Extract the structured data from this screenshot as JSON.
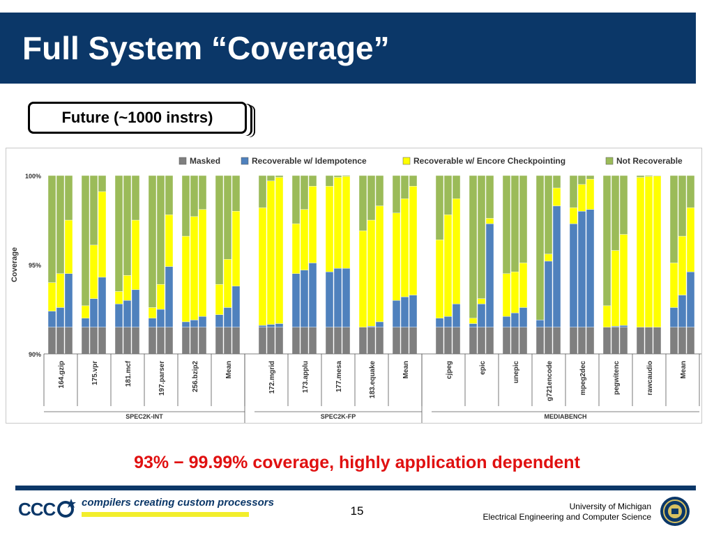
{
  "slide": {
    "title": "Full System “Coverage”",
    "subtitle": "Future (~1000 instrs)",
    "conclusion": "93% − 99.99% coverage, highly application dependent",
    "page_number": "15"
  },
  "footer": {
    "logo_text": "CCC",
    "tagline": "compilers creating custom processors",
    "university": "University of Michigan",
    "department": "Electrical Engineering and Computer Science",
    "seal_icon": "university-seal-icon",
    "logo_icon": "ccc-logo-icon"
  },
  "colors": {
    "title_bar": "#0b3768",
    "masked": "#7f7f7f",
    "idempotence": "#4f81bd",
    "checkpointing": "#ffff00",
    "not_recoverable": "#9bbb59",
    "conclusion": "#e01010"
  },
  "chart_data": {
    "type": "bar",
    "stacked": true,
    "title": "",
    "xlabel": "",
    "ylabel": "Coverage",
    "ylim": [
      90,
      100
    ],
    "yticks": [
      {
        "value": 90,
        "label": "90%"
      },
      {
        "value": 95,
        "label": "95%"
      },
      {
        "value": 100,
        "label": "100%"
      }
    ],
    "legend_position": "top",
    "series_names": [
      "Masked",
      "Recoverable w/ Idempotence",
      "Recoverable w/ Encore Checkpointing",
      "Not Recoverable"
    ],
    "bar_variants": [
      "bar 1",
      "bar 2",
      "bar 3"
    ],
    "groups": [
      {
        "label": "SPEC2K-INT",
        "benchmarks": [
          {
            "name": "164.gzip",
            "bars": [
              [
                91.5,
                92.4,
                94.0
              ],
              [
                91.5,
                92.6,
                94.5
              ],
              [
                91.5,
                94.5,
                97.5
              ]
            ]
          },
          {
            "name": "175.vpr",
            "bars": [
              [
                91.5,
                92.0,
                92.7
              ],
              [
                91.5,
                93.1,
                96.1
              ],
              [
                91.5,
                94.3,
                99.1
              ]
            ]
          },
          {
            "name": "181.mcf",
            "bars": [
              [
                91.5,
                92.8,
                93.5
              ],
              [
                91.5,
                93.0,
                94.4
              ],
              [
                91.5,
                93.6,
                97.5
              ]
            ]
          },
          {
            "name": "197.parser",
            "bars": [
              [
                91.5,
                92.0,
                92.6
              ],
              [
                91.5,
                92.5,
                93.9
              ],
              [
                91.5,
                94.9,
                97.8
              ]
            ]
          },
          {
            "name": "256.bzip2",
            "bars": [
              [
                91.5,
                91.8,
                96.6
              ],
              [
                91.5,
                91.9,
                97.7
              ],
              [
                91.5,
                92.1,
                98.1
              ]
            ]
          },
          {
            "name": "Mean",
            "bars": [
              [
                91.5,
                92.2,
                93.9
              ],
              [
                91.5,
                92.6,
                95.3
              ],
              [
                91.5,
                93.8,
                98.0
              ]
            ]
          }
        ]
      },
      {
        "label": "SPEC2K-FP",
        "benchmarks": [
          {
            "name": "172.mgrid",
            "bars": [
              [
                91.5,
                91.6,
                98.2
              ],
              [
                91.5,
                91.65,
                99.7
              ],
              [
                91.5,
                91.7,
                99.9
              ]
            ]
          },
          {
            "name": "173.applu",
            "bars": [
              [
                91.5,
                94.5,
                97.3
              ],
              [
                91.5,
                94.7,
                98.1
              ],
              [
                91.5,
                95.1,
                99.4
              ]
            ]
          },
          {
            "name": "177.mesa",
            "bars": [
              [
                91.5,
                94.6,
                99.4
              ],
              [
                91.5,
                94.8,
                99.9
              ],
              [
                91.5,
                94.8,
                99.95
              ]
            ]
          },
          {
            "name": "183.equake",
            "bars": [
              [
                91.5,
                91.5,
                96.9
              ],
              [
                91.5,
                91.55,
                97.5
              ],
              [
                91.5,
                91.8,
                98.3
              ]
            ]
          },
          {
            "name": "Mean",
            "bars": [
              [
                91.5,
                93.0,
                97.9
              ],
              [
                91.5,
                93.2,
                98.7
              ],
              [
                91.5,
                93.3,
                99.4
              ]
            ]
          }
        ]
      },
      {
        "label": "MEDIABENCH",
        "benchmarks": [
          {
            "name": "cjpeg",
            "bars": [
              [
                91.5,
                92.0,
                96.4
              ],
              [
                91.5,
                92.1,
                97.8
              ],
              [
                91.5,
                92.8,
                98.7
              ]
            ]
          },
          {
            "name": "epic",
            "bars": [
              [
                91.5,
                91.7,
                92.0
              ],
              [
                91.5,
                92.8,
                93.1
              ],
              [
                91.5,
                97.3,
                97.6
              ]
            ]
          },
          {
            "name": "unepic",
            "bars": [
              [
                91.5,
                92.1,
                94.5
              ],
              [
                91.5,
                92.3,
                94.6
              ],
              [
                91.5,
                92.6,
                95.1
              ]
            ]
          },
          {
            "name": "g721encode",
            "bars": [
              [
                91.5,
                91.9,
                91.9
              ],
              [
                91.5,
                95.2,
                95.6
              ],
              [
                91.5,
                98.3,
                99.3
              ]
            ]
          },
          {
            "name": "mpeg2dec",
            "bars": [
              [
                91.5,
                97.3,
                98.2
              ],
              [
                91.5,
                98.0,
                99.5
              ],
              [
                91.5,
                98.1,
                99.8
              ]
            ]
          },
          {
            "name": "pegwitenc",
            "bars": [
              [
                91.5,
                91.5,
                92.7
              ],
              [
                91.5,
                91.55,
                95.8
              ],
              [
                91.5,
                91.6,
                96.7
              ]
            ]
          },
          {
            "name": "rawcaudio",
            "bars": [
              [
                91.5,
                91.5,
                99.9
              ],
              [
                91.5,
                91.5,
                99.95
              ],
              [
                91.5,
                91.5,
                99.97
              ]
            ]
          },
          {
            "name": "Mean",
            "bars": [
              [
                91.5,
                92.6,
                95.1
              ],
              [
                91.5,
                93.3,
                96.6
              ],
              [
                91.5,
                94.6,
                98.2
              ]
            ]
          }
        ]
      }
    ],
    "notes": "Each bar is a cumulative stack from 90%: Masked up to value[0], Idempotence up to value[1], Encore Checkpointing up to value[2], Not Recoverable up to 100%."
  }
}
